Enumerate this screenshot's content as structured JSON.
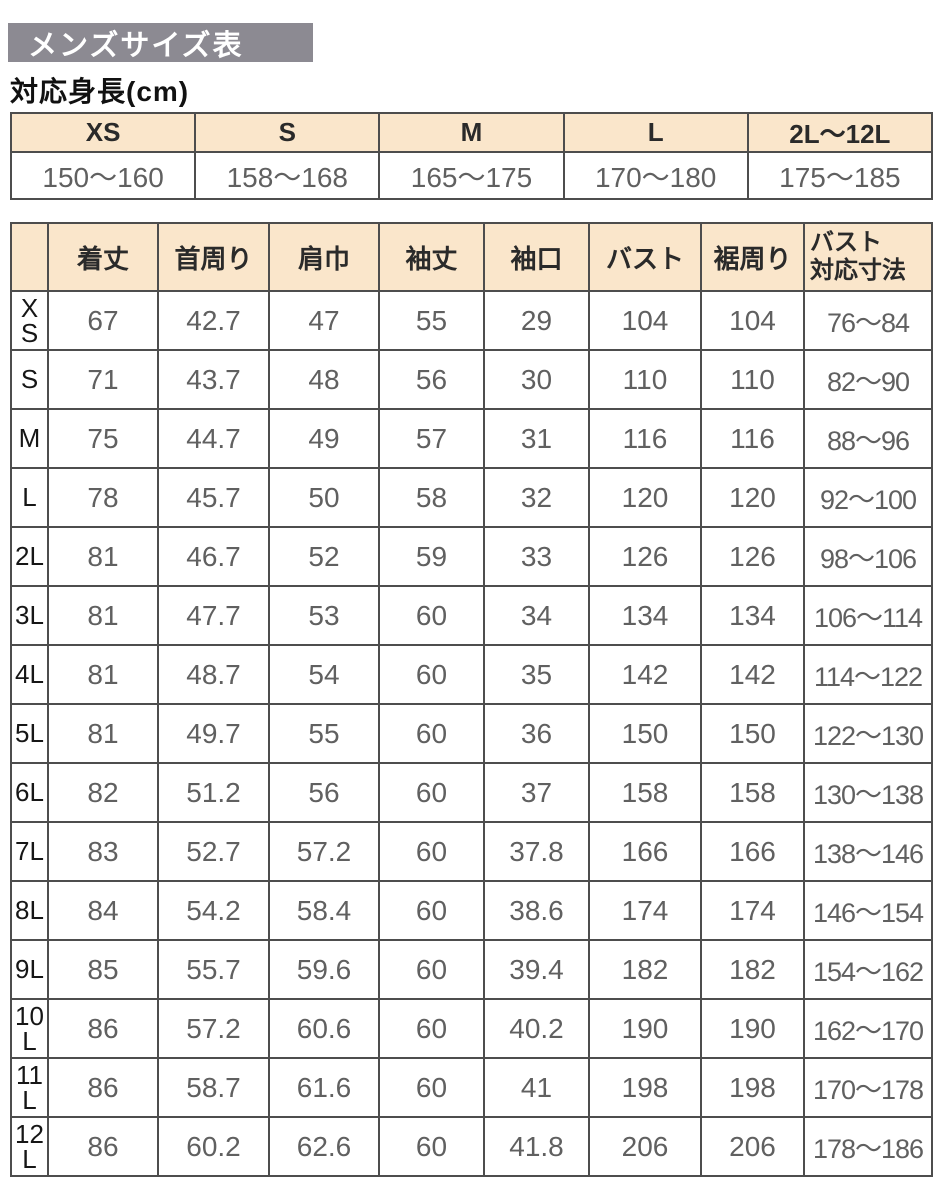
{
  "page": {
    "title": "メンズサイズ表",
    "height_caption": "対応身長(cm)"
  },
  "height_table": {
    "columns": [
      "XS",
      "S",
      "M",
      "L",
      "2L〜12L"
    ],
    "values": [
      "150〜160",
      "158〜168",
      "165〜175",
      "170〜180",
      "175〜185"
    ]
  },
  "size_table": {
    "headers": [
      "",
      "着丈",
      "首周り",
      "肩巾",
      "袖丈",
      "袖口",
      "バスト",
      "裾周り",
      "バスト\n対応寸法"
    ],
    "rows": [
      {
        "size": "XS",
        "values": [
          "67",
          "42.7",
          "47",
          "55",
          "29",
          "104",
          "104",
          "76〜84"
        ]
      },
      {
        "size": "S",
        "values": [
          "71",
          "43.7",
          "48",
          "56",
          "30",
          "110",
          "110",
          "82〜90"
        ]
      },
      {
        "size": "M",
        "values": [
          "75",
          "44.7",
          "49",
          "57",
          "31",
          "116",
          "116",
          "88〜96"
        ]
      },
      {
        "size": "L",
        "values": [
          "78",
          "45.7",
          "50",
          "58",
          "32",
          "120",
          "120",
          "92〜100"
        ]
      },
      {
        "size": "2L",
        "values": [
          "81",
          "46.7",
          "52",
          "59",
          "33",
          "126",
          "126",
          "98〜106"
        ]
      },
      {
        "size": "3L",
        "values": [
          "81",
          "47.7",
          "53",
          "60",
          "34",
          "134",
          "134",
          "106〜114"
        ]
      },
      {
        "size": "4L",
        "values": [
          "81",
          "48.7",
          "54",
          "60",
          "35",
          "142",
          "142",
          "114〜122"
        ]
      },
      {
        "size": "5L",
        "values": [
          "81",
          "49.7",
          "55",
          "60",
          "36",
          "150",
          "150",
          "122〜130"
        ]
      },
      {
        "size": "6L",
        "values": [
          "82",
          "51.2",
          "56",
          "60",
          "37",
          "158",
          "158",
          "130〜138"
        ]
      },
      {
        "size": "7L",
        "values": [
          "83",
          "52.7",
          "57.2",
          "60",
          "37.8",
          "166",
          "166",
          "138〜146"
        ]
      },
      {
        "size": "8L",
        "values": [
          "84",
          "54.2",
          "58.4",
          "60",
          "38.6",
          "174",
          "174",
          "146〜154"
        ]
      },
      {
        "size": "9L",
        "values": [
          "85",
          "55.7",
          "59.6",
          "60",
          "39.4",
          "182",
          "182",
          "154〜162"
        ]
      },
      {
        "size": "10L",
        "values": [
          "86",
          "57.2",
          "60.6",
          "60",
          "40.2",
          "190",
          "190",
          "162〜170"
        ]
      },
      {
        "size": "11L",
        "values": [
          "86",
          "58.7",
          "61.6",
          "60",
          "41",
          "198",
          "198",
          "170〜178"
        ]
      },
      {
        "size": "12L",
        "values": [
          "86",
          "60.2",
          "62.6",
          "60",
          "41.8",
          "206",
          "206",
          "178〜186"
        ]
      }
    ]
  },
  "colors": {
    "title_bar_bg": "#8c8a92",
    "header_bg": "#fae6cb",
    "border": "#4d4d4d",
    "number_text": "#606060",
    "heading_text": "#2a2a2a"
  }
}
